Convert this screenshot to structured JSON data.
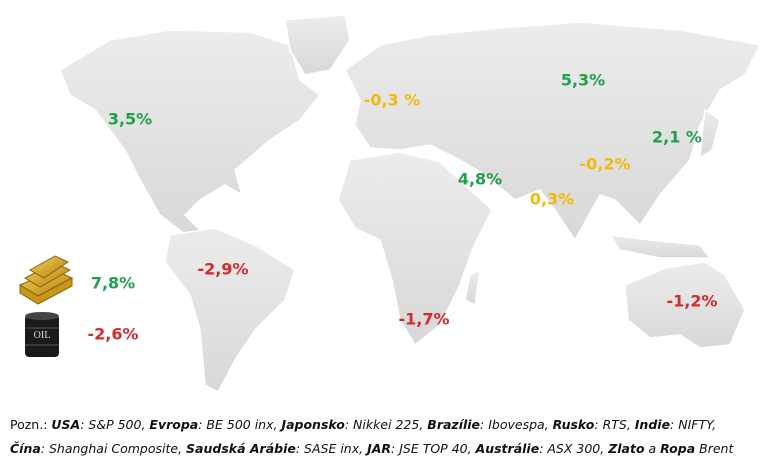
{
  "labels": [
    {
      "text": "3,5%",
      "color": "#21a04b"
    },
    {
      "text": "-0,3 %",
      "color": "#f2b90c"
    },
    {
      "text": "5,3%",
      "color": "#21a04b"
    },
    {
      "text": "2,1 %",
      "color": "#21a04b"
    },
    {
      "text": "-0,2%",
      "color": "#f2b90c"
    },
    {
      "text": "4,8%",
      "color": "#21a04b"
    },
    {
      "text": "0,3%",
      "color": "#f2b90c"
    },
    {
      "text": "-2,9%",
      "color": "#d42a2a"
    },
    {
      "text": "-1,7%",
      "color": "#d42a2a"
    },
    {
      "text": "-1,2%",
      "color": "#d42a2a"
    },
    {
      "text": "7,8%",
      "color": "#21a04b"
    },
    {
      "text": "-2,6%",
      "color": "#d42a2a"
    }
  ],
  "footnote": {
    "lines": [
      [
        {
          "text": "Pozn.: ",
          "style": "n"
        },
        {
          "text": "USA",
          "style": "bi"
        },
        {
          "text": ": S&P 500, ",
          "style": "i"
        },
        {
          "text": "Evropa",
          "style": "bi"
        },
        {
          "text": ": BE 500 inx, ",
          "style": "i"
        },
        {
          "text": "Japonsko",
          "style": "bi"
        },
        {
          "text": ": Nikkei 225, ",
          "style": "i"
        },
        {
          "text": "Brazílie",
          "style": "bi"
        },
        {
          "text": ": Ibovespa, ",
          "style": "i"
        },
        {
          "text": "Rusko",
          "style": "bi"
        },
        {
          "text": ": RTS, ",
          "style": "i"
        },
        {
          "text": "Indie",
          "style": "bi"
        },
        {
          "text": ": NIFTY,",
          "style": "i"
        }
      ],
      [
        {
          "text": "Čína",
          "style": "bi"
        },
        {
          "text": ": Shanghai Composite, ",
          "style": "i"
        },
        {
          "text": "Saudská Arábie",
          "style": "bi"
        },
        {
          "text": ": SASE inx, ",
          "style": "i"
        },
        {
          "text": "JAR",
          "style": "bi"
        },
        {
          "text": ": JSE TOP 40, ",
          "style": "i"
        },
        {
          "text": "Austrálie",
          "style": "bi"
        },
        {
          "text": ": ASX 300, ",
          "style": "i"
        },
        {
          "text": "Zlato",
          "style": "bi"
        },
        {
          "text": " a ",
          "style": "i"
        },
        {
          "text": "Ropa",
          "style": "bi"
        },
        {
          "text": " Brent",
          "style": "i"
        }
      ]
    ]
  }
}
